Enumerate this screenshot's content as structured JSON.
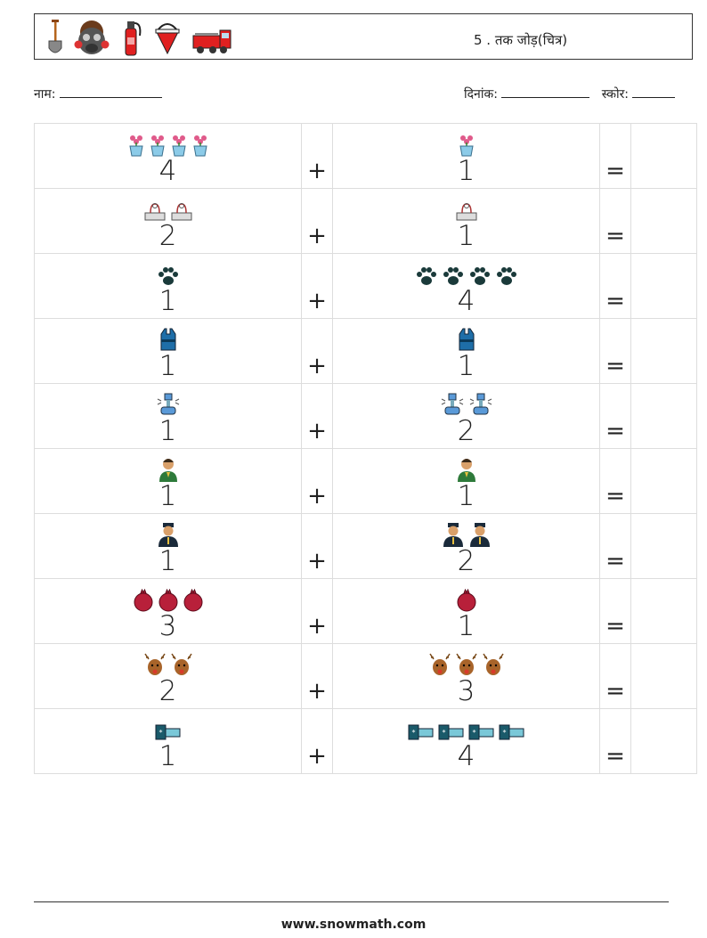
{
  "header": {
    "title": "5 . तक जोड़(चित्र)",
    "icons": [
      "shovel-icon",
      "gas-mask-icon",
      "fire-extinguisher-icon",
      "fire-bucket-icon",
      "fire-truck-icon"
    ]
  },
  "info": {
    "name_label": "नाम:",
    "date_label": "दिनांक:",
    "score_label": "स्कोर:"
  },
  "symbols": {
    "plus": "+",
    "equals": "="
  },
  "problems": [
    {
      "a": 4,
      "b": 1,
      "a_icon": "flower-pot-icon",
      "b_icon": "flower-pot-icon"
    },
    {
      "a": 2,
      "b": 1,
      "a_icon": "scale-icon",
      "b_icon": "scale-icon"
    },
    {
      "a": 1,
      "b": 4,
      "a_icon": "paw-icon",
      "b_icon": "paw-icon"
    },
    {
      "a": 1,
      "b": 1,
      "a_icon": "vest-icon",
      "b_icon": "vest-icon"
    },
    {
      "a": 1,
      "b": 2,
      "a_icon": "robot-icon",
      "b_icon": "robot-icon"
    },
    {
      "a": 1,
      "b": 1,
      "a_icon": "boy-icon",
      "b_icon": "boy-icon"
    },
    {
      "a": 1,
      "b": 2,
      "a_icon": "police-officer-icon",
      "b_icon": "police-officer-icon"
    },
    {
      "a": 3,
      "b": 1,
      "a_icon": "pomegranate-icon",
      "b_icon": "pomegranate-icon"
    },
    {
      "a": 2,
      "b": 3,
      "a_icon": "reindeer-icon",
      "b_icon": "reindeer-icon"
    },
    {
      "a": 1,
      "b": 4,
      "a_icon": "battery-icon",
      "b_icon": "battery-icon"
    }
  ],
  "footer": {
    "url": "www.snowmath.com"
  }
}
